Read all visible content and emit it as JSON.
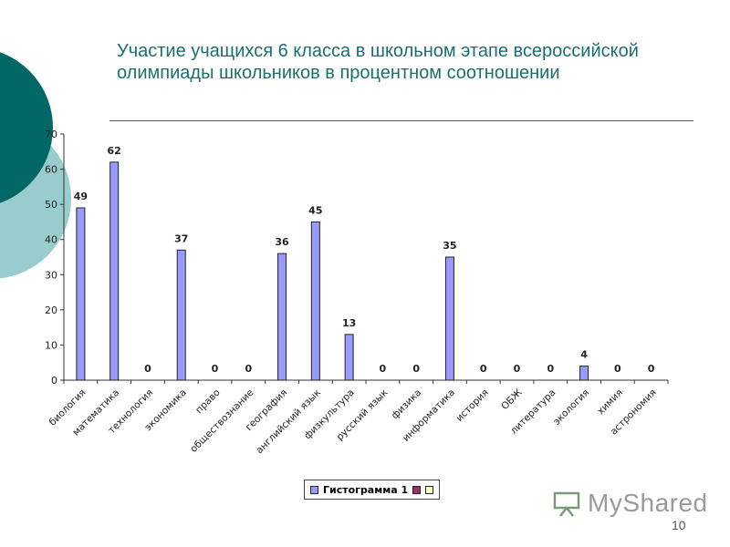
{
  "slide": {
    "title": "Участие учащихся 6 класса в школьном этапе всероссийской олимпиады школьников в процентном соотношении",
    "page_number": "10",
    "watermark": "MyShared"
  },
  "colors": {
    "bar_fill": "#9999ff",
    "bar_stroke": "#222222",
    "accent_dark": "#006666",
    "accent_light": "#99cccc",
    "title": "#1b6f6f",
    "legend_series2": "#993366",
    "legend_series3": "#ffffcc"
  },
  "chart_data": {
    "type": "bar",
    "categories": [
      "биология",
      "математика",
      "технология",
      "экономика",
      "право",
      "обществознание",
      "география",
      "английский язык",
      "физкультура",
      "русский язык",
      "физика",
      "информатика",
      "история",
      "ОБЖ",
      "литература",
      "экология",
      "химия",
      "астрономия"
    ],
    "values": [
      49,
      62,
      0,
      37,
      0,
      0,
      36,
      45,
      13,
      0,
      0,
      35,
      0,
      0,
      0,
      4,
      0,
      0
    ],
    "ylim": [
      0,
      70
    ],
    "yticks": [
      0,
      10,
      20,
      30,
      40,
      50,
      60,
      70
    ],
    "legend": [
      "Гистограмма 1",
      "",
      ""
    ],
    "legend_placement": "bottom",
    "grid": false,
    "data_labels": true
  }
}
